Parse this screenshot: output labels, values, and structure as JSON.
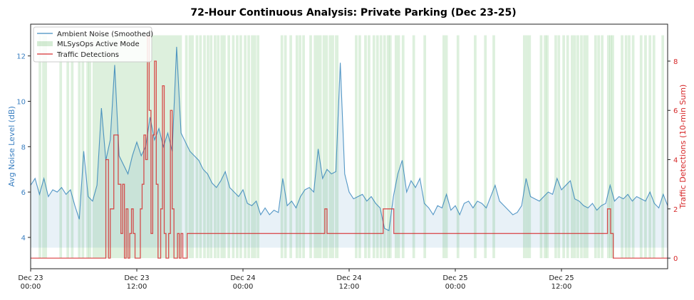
{
  "chart_data": {
    "type": "line",
    "title": "72-Hour Continuous Analysis: Private Parking (Dec 23-25)",
    "ylabel_left": "Avg Noise Level (dB)",
    "ylabel_right": "Traffic Detections (10-min Sum)",
    "xlabel": "",
    "xlim_hours": [
      0,
      72
    ],
    "ylim_left": [
      2.62,
      13.4
    ],
    "ylim_right": [
      -0.43,
      9.5
    ],
    "grid": false,
    "legend_position": "top-left",
    "x_ticks": [
      {
        "hour": 0,
        "label": [
          "Dec 23",
          "00:00"
        ]
      },
      {
        "hour": 12,
        "label": [
          "Dec 23",
          "12:00"
        ]
      },
      {
        "hour": 24,
        "label": [
          "Dec 24",
          "00:00"
        ]
      },
      {
        "hour": 36,
        "label": [
          "Dec 24",
          "12:00"
        ]
      },
      {
        "hour": 48,
        "label": [
          "Dec 25",
          "00:00"
        ]
      },
      {
        "hour": 60,
        "label": [
          "Dec 25",
          "12:00"
        ]
      }
    ],
    "y_ticks_left": [
      "4",
      "6",
      "8",
      "10",
      "12"
    ],
    "y_ticks_right": [
      "0",
      "2",
      "4",
      "6",
      "8"
    ],
    "colors": {
      "noise": "#1f77b4",
      "active": "#2ca02c",
      "traffic": "#d62728",
      "left_axis": "#3a7fc1",
      "right_axis": "#d62728"
    },
    "legend": [
      "Ambient Noise (Smoothed)",
      "MLSysOps Active Mode",
      "Traffic Detections"
    ],
    "noise_series": {
      "name": "Ambient Noise (Smoothed)",
      "x_step_hours": 0.5,
      "fill_baseline_db": 3.55,
      "values": [
        6.3,
        6.6,
        5.9,
        6.6,
        5.8,
        6.1,
        6.0,
        6.2,
        5.9,
        6.1,
        5.4,
        4.8,
        7.8,
        5.8,
        5.6,
        6.3,
        9.7,
        7.4,
        8.3,
        11.6,
        7.6,
        7.2,
        6.8,
        7.6,
        8.2,
        7.6,
        8.0,
        9.3,
        8.3,
        8.8,
        8.0,
        8.6,
        7.8,
        12.4,
        8.6,
        8.2,
        7.8,
        7.6,
        7.4,
        7.0,
        6.8,
        6.4,
        6.2,
        6.5,
        6.9,
        6.2,
        6.0,
        5.8,
        6.1,
        5.5,
        5.4,
        5.6,
        5.0,
        5.3,
        5.0,
        5.2,
        5.1,
        6.6,
        5.4,
        5.6,
        5.3,
        5.8,
        6.1,
        6.2,
        6.0,
        7.9,
        6.6,
        7.0,
        6.8,
        6.9,
        11.7,
        6.8,
        6.0,
        5.7,
        5.8,
        5.9,
        5.6,
        5.8,
        5.5,
        5.3,
        4.4,
        4.3,
        5.8,
        6.8,
        7.4,
        6.0,
        6.5,
        6.2,
        6.6,
        5.5,
        5.3,
        5.0,
        5.4,
        5.3,
        5.9,
        5.2,
        5.4,
        5.0,
        5.5,
        5.6,
        5.3,
        5.6,
        5.5,
        5.3,
        5.8,
        6.3,
        5.6,
        5.4,
        5.2,
        5.0,
        5.1,
        5.4,
        6.6,
        5.8,
        5.7,
        5.6,
        5.8,
        6.0,
        5.9,
        6.6,
        6.1,
        6.3,
        6.5,
        5.7,
        5.6,
        5.4,
        5.3,
        5.5,
        5.2,
        5.4,
        5.5,
        6.3,
        5.6,
        5.8,
        5.7,
        5.9,
        5.6,
        5.8,
        5.7,
        5.6,
        6.0,
        5.5,
        5.3,
        5.9,
        5.4
      ]
    },
    "active_mode_hours": [
      [
        0.9,
        1.2
      ],
      [
        1.3,
        1.6
      ],
      [
        1.6,
        1.85
      ],
      [
        3.25,
        3.55
      ],
      [
        4.05,
        4.35
      ],
      [
        4.55,
        4.85
      ],
      [
        5.35,
        5.65
      ],
      [
        5.75,
        6.05
      ],
      [
        6.3,
        6.6
      ],
      [
        6.55,
        6.85
      ],
      [
        7.0,
        17.1
      ],
      [
        17.45,
        17.75
      ],
      [
        17.85,
        18.15
      ],
      [
        18.15,
        18.45
      ],
      [
        18.65,
        18.95
      ],
      [
        19.05,
        19.35
      ],
      [
        19.5,
        19.8
      ],
      [
        19.9,
        20.2
      ],
      [
        20.25,
        20.55
      ],
      [
        20.7,
        21.0
      ],
      [
        21.05,
        21.35
      ],
      [
        21.45,
        21.75
      ],
      [
        21.75,
        22.05
      ],
      [
        22.25,
        22.55
      ],
      [
        22.75,
        23.05
      ],
      [
        23.2,
        23.5
      ],
      [
        23.6,
        23.9
      ],
      [
        24.1,
        24.4
      ],
      [
        24.5,
        24.8
      ],
      [
        24.9,
        25.2
      ],
      [
        25.2,
        25.5
      ],
      [
        25.55,
        25.85
      ],
      [
        28.25,
        28.55
      ],
      [
        28.65,
        28.95
      ],
      [
        29.25,
        29.55
      ],
      [
        29.95,
        30.25
      ],
      [
        30.3,
        30.6
      ],
      [
        30.7,
        31.0
      ],
      [
        31.5,
        31.8
      ],
      [
        32.0,
        32.9
      ],
      [
        33.0,
        33.6
      ],
      [
        33.7,
        34.3
      ],
      [
        34.4,
        34.8
      ],
      [
        36.65,
        36.95
      ],
      [
        37.05,
        37.35
      ],
      [
        37.7,
        38.0
      ],
      [
        38.1,
        38.4
      ],
      [
        38.65,
        38.95
      ],
      [
        39.05,
        39.35
      ],
      [
        39.45,
        39.75
      ],
      [
        39.85,
        40.15
      ],
      [
        40.25,
        40.55
      ],
      [
        40.5,
        40.8
      ],
      [
        41.15,
        41.45
      ],
      [
        41.45,
        41.75
      ],
      [
        41.95,
        42.25
      ],
      [
        43.15,
        43.45
      ],
      [
        44.4,
        44.7
      ],
      [
        46.55,
        46.85
      ],
      [
        46.85,
        47.15
      ],
      [
        48.15,
        48.45
      ],
      [
        50.1,
        50.4
      ],
      [
        51.25,
        51.55
      ],
      [
        52.2,
        52.5
      ],
      [
        55.65,
        55.95
      ],
      [
        55.95,
        56.25
      ],
      [
        56.25,
        56.55
      ],
      [
        57.55,
        57.85
      ],
      [
        58.0,
        58.3
      ],
      [
        58.25,
        58.55
      ],
      [
        59.2,
        59.5
      ],
      [
        59.55,
        59.85
      ],
      [
        60.1,
        60.4
      ],
      [
        60.55,
        60.85
      ],
      [
        61.05,
        61.35
      ],
      [
        61.35,
        61.65
      ],
      [
        61.7,
        62.0
      ],
      [
        62.1,
        62.4
      ],
      [
        62.45,
        62.75
      ],
      [
        62.75,
        63.05
      ],
      [
        63.7,
        64.0
      ],
      [
        64.05,
        64.35
      ],
      [
        64.45,
        64.75
      ],
      [
        65.15,
        65.45
      ],
      [
        65.4,
        65.7
      ],
      [
        65.65,
        65.95
      ],
      [
        66.7,
        67.0
      ],
      [
        67.15,
        67.45
      ],
      [
        67.5,
        67.8
      ],
      [
        67.95,
        68.25
      ],
      [
        68.85,
        69.15
      ],
      [
        69.35,
        69.65
      ],
      [
        69.85,
        70.15
      ],
      [
        70.3,
        70.6
      ],
      [
        71.3,
        71.6
      ]
    ],
    "traffic_segments": [
      [
        8.5,
        8.8,
        4
      ],
      [
        8.8,
        9.0,
        0
      ],
      [
        9.0,
        9.4,
        2
      ],
      [
        9.4,
        9.9,
        5
      ],
      [
        9.9,
        10.2,
        3
      ],
      [
        10.2,
        10.4,
        1
      ],
      [
        10.4,
        10.6,
        3
      ],
      [
        10.6,
        10.8,
        0
      ],
      [
        10.8,
        11.0,
        2
      ],
      [
        11.0,
        11.2,
        0
      ],
      [
        11.2,
        11.4,
        1
      ],
      [
        11.4,
        11.6,
        2
      ],
      [
        11.6,
        11.8,
        1
      ],
      [
        11.8,
        12.4,
        0
      ],
      [
        12.4,
        12.6,
        2
      ],
      [
        12.6,
        12.8,
        3
      ],
      [
        12.8,
        13.0,
        5
      ],
      [
        13.0,
        13.2,
        4
      ],
      [
        13.2,
        13.4,
        9
      ],
      [
        13.4,
        13.6,
        6
      ],
      [
        13.6,
        13.8,
        1
      ],
      [
        13.8,
        14.0,
        5
      ],
      [
        14.0,
        14.2,
        8
      ],
      [
        14.2,
        14.4,
        3
      ],
      [
        14.4,
        14.7,
        0
      ],
      [
        14.7,
        14.9,
        2
      ],
      [
        14.9,
        15.1,
        7
      ],
      [
        15.1,
        15.3,
        1
      ],
      [
        15.3,
        15.6,
        0
      ],
      [
        15.6,
        15.8,
        1
      ],
      [
        15.8,
        16.0,
        6
      ],
      [
        16.0,
        16.2,
        2
      ],
      [
        16.2,
        16.6,
        0
      ],
      [
        16.6,
        16.8,
        1
      ],
      [
        16.8,
        17.0,
        0
      ],
      [
        17.0,
        17.2,
        1
      ],
      [
        17.2,
        17.7,
        0
      ],
      [
        17.7,
        18.0,
        1
      ],
      [
        33.25,
        33.5,
        2
      ],
      [
        33.5,
        33.75,
        1
      ],
      [
        37.85,
        38.2,
        1
      ],
      [
        38.9,
        39.15,
        1
      ],
      [
        39.4,
        39.6,
        1
      ],
      [
        39.85,
        40.1,
        2
      ],
      [
        41.05,
        41.3,
        1
      ],
      [
        57.7,
        58.0,
        1
      ],
      [
        58.4,
        58.7,
        1
      ],
      [
        60.15,
        60.4,
        1
      ],
      [
        60.9,
        61.2,
        1
      ],
      [
        65.15,
        65.2,
        1
      ],
      [
        65.2,
        65.3,
        2
      ],
      [
        65.55,
        65.85,
        1
      ]
    ]
  }
}
